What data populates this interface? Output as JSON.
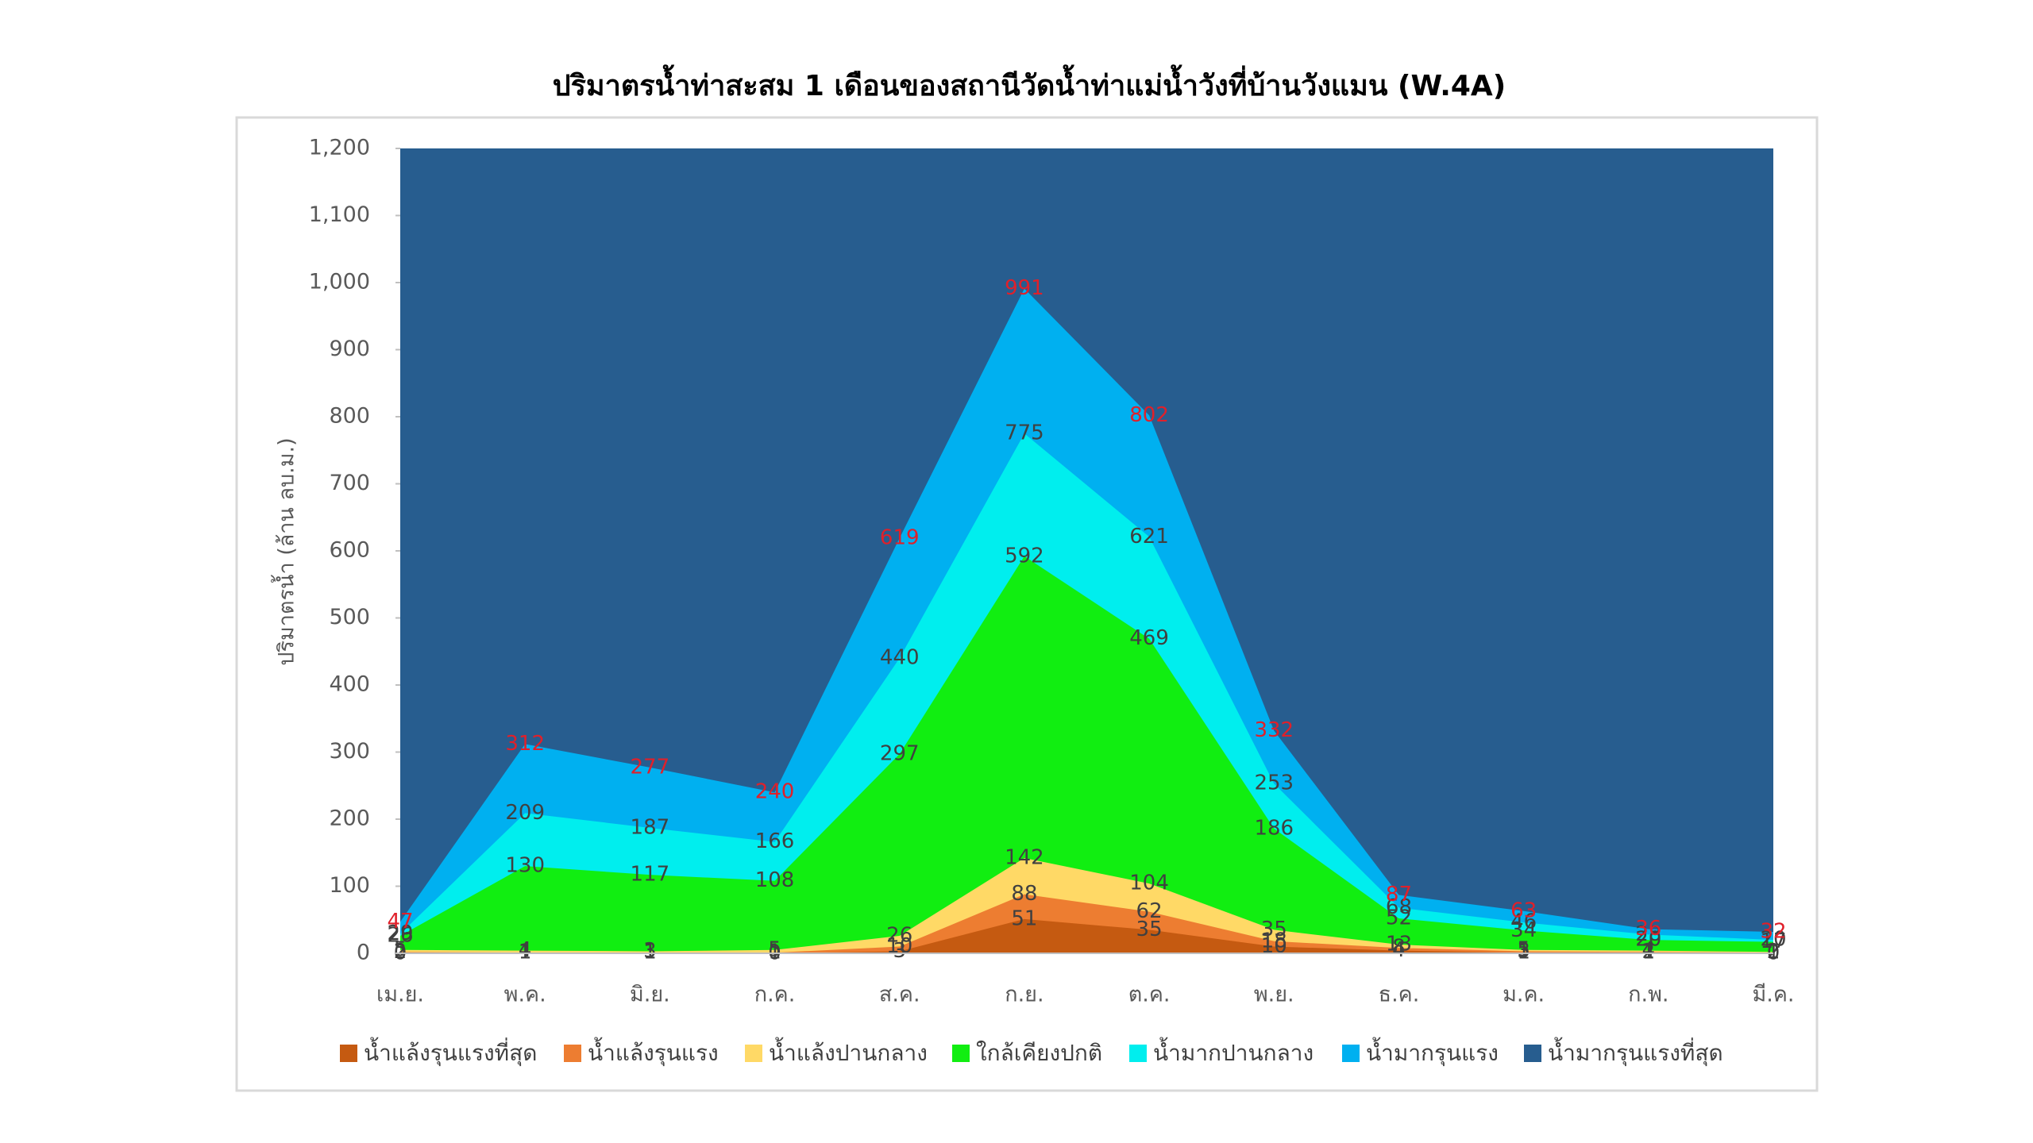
{
  "chart_data": {
    "type": "area",
    "title": "ปริมาตรน้ำท่าสะสม 1 เดือนของสถานีวัดน้ำท่าแม่น้ำวังที่บ้านวังแมน (W.4A)",
    "y_label": "ปริมาตรน้ำ (ล้าน ลบ.ม.)",
    "categories": [
      "เม.ย.",
      "พ.ค.",
      "มิ.ย.",
      "ก.ค.",
      "ส.ค.",
      "ก.ย.",
      "ต.ค.",
      "พ.ย.",
      "ธ.ค.",
      "ม.ค.",
      "ก.พ.",
      "มี.ค."
    ],
    "ylim": [
      0,
      1200
    ],
    "yticks": [
      0,
      100,
      200,
      300,
      400,
      500,
      600,
      700,
      800,
      900,
      {
        "value": 1000,
        "label": "1,000"
      },
      {
        "value": 1100,
        "label": "1,100"
      },
      {
        "value": 1200,
        "label": "1,200"
      }
    ],
    "series": [
      {
        "name": "น้ำแล้งรุนแรงที่สุด",
        "color": "#c55a11",
        "data_labels": true,
        "label_color": "#404040",
        "values": [
          0,
          1,
          1,
          0,
          3,
          51,
          35,
          10,
          4,
          1,
          1,
          0
        ]
      },
      {
        "name": "น้ำแล้งรุนแรง",
        "color": "#ed7d31",
        "data_labels": true,
        "label_color": "#404040",
        "values": [
          2,
          1,
          1,
          1,
          10,
          88,
          62,
          18,
          8,
          3,
          2,
          1
        ]
      },
      {
        "name": "น้ำแล้งปานกลาง",
        "color": "#ffd966",
        "data_labels": true,
        "label_color": "#404040",
        "values": [
          5,
          4,
          3,
          5,
          26,
          142,
          104,
          35,
          13,
          5,
          4,
          2
        ]
      },
      {
        "name": "ใกล้เคียงปกติ",
        "color": "#11ee11",
        "data_labels": true,
        "label_color": "#404040",
        "values": [
          26,
          130,
          117,
          108,
          297,
          592,
          469,
          186,
          52,
          34,
          20,
          17
        ]
      },
      {
        "name": "น้ำมากปานกลาง",
        "color": "#00eeee",
        "data_labels": true,
        "label_color": "#404040",
        "values": [
          29,
          209,
          187,
          166,
          440,
          775,
          621,
          253,
          68,
          46,
          28,
          20
        ]
      },
      {
        "name": "น้ำมากรุนแรง",
        "color": "#00b0f0",
        "data_labels": true,
        "label_color": "#e0202a",
        "values": [
          47,
          312,
          277,
          240,
          619,
          991,
          802,
          332,
          87,
          63,
          36,
          32
        ]
      },
      {
        "name": "น้ำมากรุนแรงที่สุด",
        "color": "#275d8f",
        "data_labels": false,
        "label_color": "#404040",
        "values": [
          1200,
          1200,
          1200,
          1200,
          1200,
          1200,
          1200,
          1200,
          1200,
          1200,
          1200,
          1200
        ]
      }
    ]
  }
}
